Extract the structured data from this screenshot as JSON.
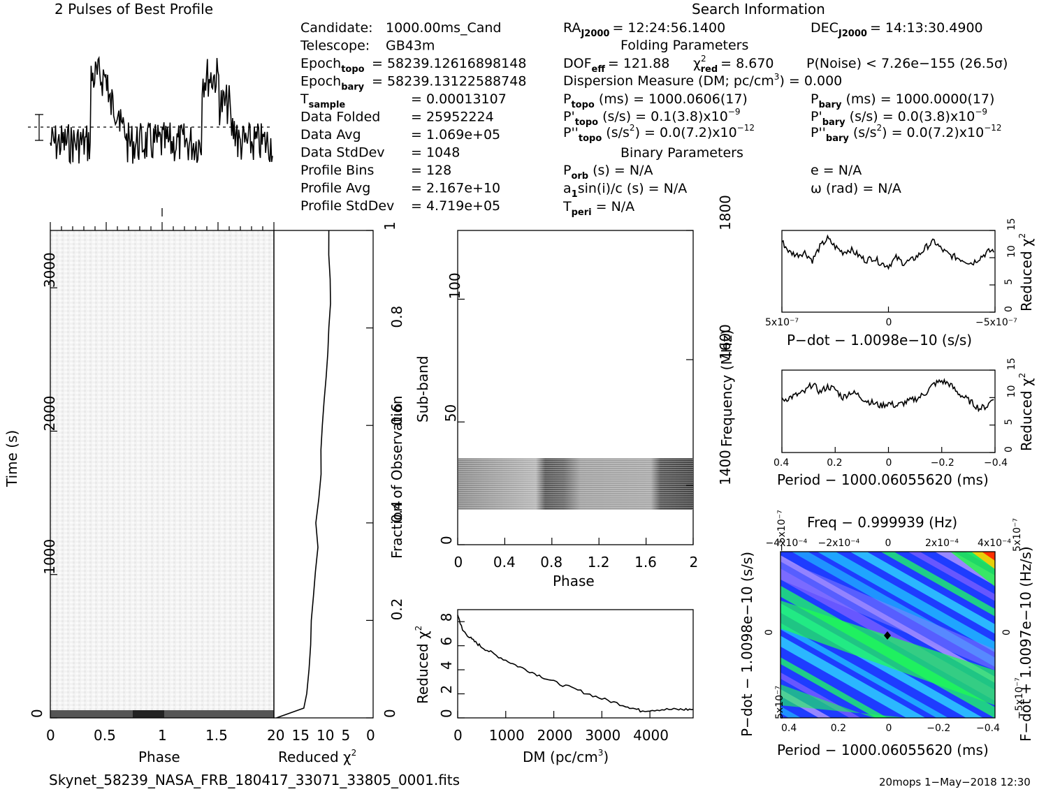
{
  "header": {
    "profile_title": "2 Pulses of Best Profile",
    "search_title": "Search Information",
    "folding_title": "Folding Parameters",
    "binary_title": "Binary Parameters"
  },
  "info_left": [
    {
      "label": "Candidate:",
      "value": "1000.00ms_Cand"
    },
    {
      "label": "Telescope:",
      "value": "GB43m"
    },
    {
      "label": "Epoch",
      "sub": "topo",
      "value": "= 58239.12616898148"
    },
    {
      "label": "Epoch",
      "sub": "bary",
      "value": "= 58239.13122588748"
    },
    {
      "label": "T",
      "sub": "sample",
      "value": "=   0.00013107"
    },
    {
      "label": "Data Folded",
      "value": "=   25952224"
    },
    {
      "label": "Data Avg",
      "value": "=   1.069e+05"
    },
    {
      "label": "Data StdDev",
      "value": "=   1048"
    },
    {
      "label": "Profile Bins",
      "value": "=   128"
    },
    {
      "label": "Profile Avg",
      "value": "=   2.167e+10"
    },
    {
      "label": "Profile StdDev",
      "value": "=   4.719e+05"
    }
  ],
  "info_search": {
    "ra": "= 12:24:56.1400",
    "dec": "= 14:13:30.4900",
    "dof": "= 121.88",
    "chi2": "= 8.670",
    "pnoise": "P(Noise) < 7.26e−155   (26.5σ)",
    "dm": "Dispersion Measure (DM; pc/cm",
    "dm_value": ") = 0.000",
    "p_topo": "(ms) =   1000.0606(17)",
    "p_bary": "(ms) =   1000.0000(17)",
    "pd_topo": "(s/s) =   0.1(3.8)x10",
    "pd_bary": "(s/s) = 0.0(3.8)x10",
    "pdd_topo": "(s/s",
    "pdd_topo2": ") = 0.0(7.2)x10",
    "pdd_bary": "(s/s",
    "pdd_bary2": ") = 0.0(7.2)x10",
    "exp9": "−9",
    "exp12": "−12",
    "porb": "(s) = N/A",
    "asini": "sin(i)/c (s) = N/A",
    "tperi": "= N/A",
    "e": "e = N/A",
    "omega": "ω (rad) = N/A"
  },
  "footer": {
    "filename": "Skynet_58239_NASA_FRB_180417_33071_33805_0001.fits",
    "stamp": "20mops   1−May−2018 12:30"
  },
  "colors": {
    "accent_red": "#ff0000",
    "blue": "#1e3cff",
    "cyan": "#20d0ff",
    "green": "#20ff40"
  },
  "chart_data": [
    {
      "type": "line",
      "title": "2 Pulses of Best Profile",
      "x": "Phase 0–2",
      "description_series": "folded pulse profile, two identical pulses, with noise",
      "xlim": [
        0,
        2
      ]
    },
    {
      "type": "heatmap",
      "xlabel": "Phase",
      "ylabel": "Time (s)",
      "xlim": [
        0,
        2
      ],
      "ylim": [
        0,
        3400
      ],
      "x_ticks": [
        "0",
        "0.5",
        "1",
        "1.5"
      ],
      "y_ticks": [
        "0",
        "1000",
        "2000",
        "3000"
      ]
    },
    {
      "type": "line",
      "xlabel": "Reduced χ",
      "ylabel": "Fraction of Observation",
      "x_ticks": [
        "20",
        "15",
        "10",
        "5",
        "0"
      ],
      "y_ticks": [
        "0",
        "0.2",
        "0.4",
        "0.6",
        "0.8",
        "1"
      ],
      "xlim": [
        20,
        0
      ],
      "ylim": [
        0,
        1
      ],
      "x": [
        0.0,
        0.02,
        0.05,
        0.1,
        0.15,
        0.2,
        0.25,
        0.3,
        0.35,
        0.4,
        0.45,
        0.5,
        0.55,
        0.6,
        0.65,
        0.7,
        0.75,
        0.8,
        0.85,
        0.9,
        0.95,
        1.0
      ],
      "y": [
        19.5,
        14.0,
        13.5,
        13.0,
        12.7,
        12.4,
        12.0,
        11.5,
        11.2,
        11.6,
        11.0,
        10.6,
        10.4,
        10.2,
        9.8,
        9.4,
        9.2,
        8.9,
        8.7,
        8.6,
        8.8,
        8.9
      ]
    },
    {
      "type": "heatmap",
      "xlabel": "Phase",
      "ylabel": "Sub-band",
      "y2label": "Frequency (MHz)",
      "x_ticks": [
        "0",
        "0.4",
        "0.8",
        "1.2",
        "1.6",
        "2"
      ],
      "y_ticks": [
        "0",
        "50",
        "100"
      ],
      "y2_ticks": [
        "1400",
        "1600",
        "1800"
      ],
      "xlim": [
        0,
        2
      ],
      "ylim": [
        0,
        128
      ],
      "band_rows": [
        14,
        35
      ]
    },
    {
      "type": "line",
      "xlabel": "DM (pc/cm",
      "ylabel": "Reduced χ",
      "x_ticks": [
        "0",
        "1000",
        "2000",
        "3000",
        "4000"
      ],
      "y_ticks": [
        "0",
        "2",
        "4",
        "6",
        "8"
      ],
      "xlim": [
        0,
        4900
      ],
      "ylim": [
        0,
        9
      ],
      "x": [
        0,
        100,
        300,
        500,
        800,
        1200,
        1600,
        2000,
        2500,
        3000,
        3500,
        3800,
        4200,
        4600,
        4900
      ],
      "y": [
        8.6,
        7.3,
        6.5,
        5.9,
        5.2,
        4.4,
        3.7,
        3.0,
        2.3,
        1.6,
        1.0,
        0.6,
        0.7,
        0.7,
        0.7
      ]
    },
    {
      "type": "line",
      "xlabel": "P−dot − 1.0098e−10 (s/s)",
      "ylabel": "Reduced χ",
      "x_ticks": [
        "5x10⁻⁷",
        "0",
        "−5x10⁻⁷"
      ],
      "y_ticks": [
        "0",
        "5",
        "10",
        "15"
      ],
      "ylim": [
        0,
        15
      ],
      "y": [
        13,
        11,
        10.5,
        11,
        9.5,
        12,
        13.5,
        12,
        11,
        11.5,
        10.5,
        9.5,
        10,
        9,
        8.5,
        10,
        9,
        9.5,
        10.5,
        12,
        13,
        11.5,
        10.5,
        10,
        9.5,
        9,
        10,
        11,
        11.5
      ]
    },
    {
      "type": "line",
      "xlabel": "Period − 1000.06055620 (ms)",
      "ylabel": "Reduced χ",
      "x_ticks": [
        "0.4",
        "0.2",
        "0",
        "−0.2",
        "−0.4"
      ],
      "y_ticks": [
        "0",
        "5",
        "10",
        "15"
      ],
      "ylim": [
        0,
        15
      ],
      "y": [
        9.5,
        10,
        10.5,
        11,
        12.5,
        11,
        12,
        11.5,
        10,
        11,
        10.5,
        9.5,
        9,
        8.5,
        9,
        8.5,
        9,
        9.5,
        10,
        11,
        12.5,
        13,
        12.5,
        11,
        10,
        9,
        8,
        8.5,
        10.5
      ]
    },
    {
      "type": "heatmap",
      "title": "Freq − 0.999939 (Hz)",
      "xlabel": "Period − 1000.06055620 (ms)",
      "ylabel": "P−dot − 1.0098e−10 (s/s)",
      "y2label": "F−dot + 1.0097e−10 (Hz/s)",
      "x_ticks": [
        "0.4",
        "0.2",
        "0",
        "−0.2",
        "−0.4"
      ],
      "x2_ticks": [
        "−4x10⁻⁴",
        "−2x10⁻⁴",
        "0",
        "2x10⁻⁴",
        "4x10⁻⁴"
      ],
      "y_ticks": [
        "5x10⁻⁷",
        "0",
        "−5x10⁻⁷"
      ],
      "y2_ticks": [
        "−5x10⁻⁷",
        "0",
        "5x10⁻⁷"
      ]
    }
  ],
  "axis_labels": {
    "phase": "Phase",
    "time": "Time (s)",
    "redchi": "Reduced χ",
    "sq": "2",
    "frac": "Fraction of Observation",
    "subband": "Sub-band",
    "freq": "Frequency (MHz)",
    "dm": "DM (pc/cm",
    "three": "3",
    "close": ")",
    "pdot": "P−dot − 1.0098e−10 (s/s)",
    "period": "Period − 1000.06055620 (ms)",
    "freq_title": "Freq − 0.999939 (Hz)",
    "pdot_left": "P−dot − 1.0098e−10 (s/s)",
    "fdot_right": "F−dot + 1.0097e−10 (Hz/s)"
  }
}
